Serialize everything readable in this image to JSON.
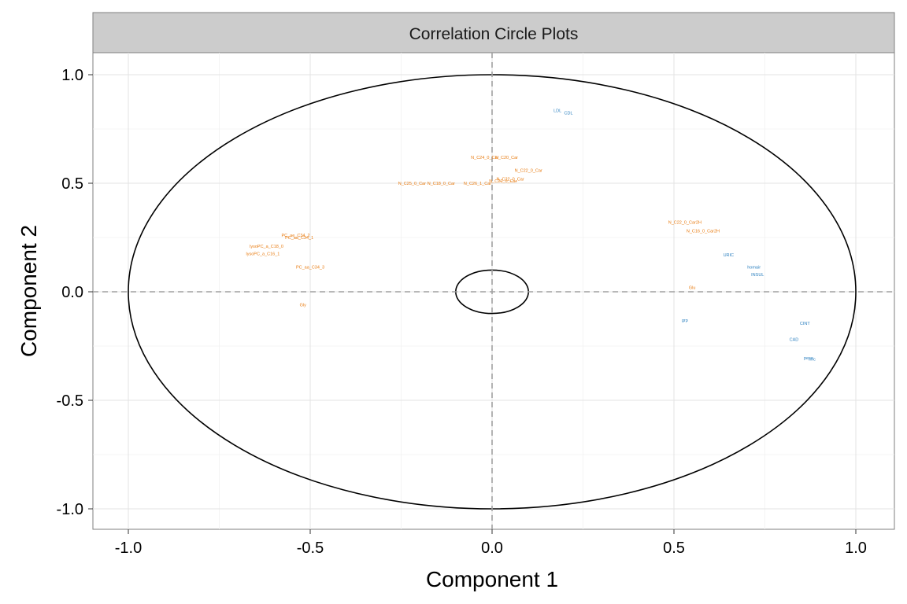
{
  "chart_data": {
    "type": "scatter",
    "title": "Correlation Circle Plots",
    "xlabel": "Component  1",
    "ylabel": "Component  2",
    "xlim": [
      -1.1,
      1.1
    ],
    "ylim": [
      -1.1,
      1.1
    ],
    "x_ticks": [
      {
        "value": -1.0,
        "label": "-1.0"
      },
      {
        "value": -0.5,
        "label": "-0.5"
      },
      {
        "value": 0.0,
        "label": "0.0"
      },
      {
        "value": 0.5,
        "label": "0.5"
      },
      {
        "value": 1.0,
        "label": "1.0"
      }
    ],
    "y_ticks": [
      {
        "value": 1.0,
        "label": "1.0"
      },
      {
        "value": 0.5,
        "label": "0.5"
      },
      {
        "value": 0.0,
        "label": "0.0"
      },
      {
        "value": -0.5,
        "label": "-0.5"
      },
      {
        "value": -1.0,
        "label": "-1.0"
      }
    ],
    "grid": true,
    "circles": [
      {
        "radius": 1.0
      },
      {
        "radius": 0.1
      }
    ],
    "reference_lines": {
      "x": 0,
      "y": 0,
      "style": "dashed"
    },
    "series": [
      {
        "color": "#E87B10",
        "points": [
          {
            "label": "N_C24_0_Car",
            "x": -0.02,
            "y": 0.62
          },
          {
            "label": "N_C20_Car",
            "x": 0.04,
            "y": 0.62
          },
          {
            "label": "N_C22_0_Car",
            "x": 0.1,
            "y": 0.56
          },
          {
            "label": "N_C22_0_Car",
            "x": 0.05,
            "y": 0.52
          },
          {
            "label": "N_C20_0_Car",
            "x": 0.03,
            "y": 0.51
          },
          {
            "label": "N_C25_0_Car",
            "x": -0.22,
            "y": 0.5
          },
          {
            "label": "N_C18_0_Car",
            "x": -0.14,
            "y": 0.5
          },
          {
            "label": "N_C26_1_Car",
            "x": -0.04,
            "y": 0.5
          },
          {
            "label": "N_C22_0_Car2H",
            "x": 0.53,
            "y": 0.32
          },
          {
            "label": "N_C16_0_Car2H",
            "x": 0.58,
            "y": 0.28
          },
          {
            "label": "PC_ae_C34_2",
            "x": -0.54,
            "y": 0.26
          },
          {
            "label": "PC_aa_C34_1",
            "x": -0.53,
            "y": 0.25
          },
          {
            "label": "lysoPC_a_C18_0",
            "x": -0.62,
            "y": 0.21
          },
          {
            "label": "lysoPC_a_C16_1",
            "x": -0.63,
            "y": 0.175
          },
          {
            "label": "PC_aa_C34_3",
            "x": -0.5,
            "y": 0.115
          },
          {
            "label": "Glu",
            "x": 0.55,
            "y": 0.02
          },
          {
            "label": "Gly",
            "x": -0.52,
            "y": -0.06
          }
        ]
      },
      {
        "color": "#2A7FBF",
        "points": [
          {
            "label": "LDL",
            "x": 0.18,
            "y": 0.835
          },
          {
            "label": "CDL",
            "x": 0.21,
            "y": 0.825
          },
          {
            "label": "URIC",
            "x": 0.65,
            "y": 0.17
          },
          {
            "label": "homair",
            "x": 0.72,
            "y": 0.115
          },
          {
            "label": "INSUL",
            "x": 0.73,
            "y": 0.08
          },
          {
            "label": "grp",
            "x": 0.53,
            "y": -0.13
          },
          {
            "label": "CINT",
            "x": 0.86,
            "y": -0.145
          },
          {
            "label": "CAD",
            "x": 0.83,
            "y": -0.22
          },
          {
            "label": "peso",
            "x": 0.87,
            "y": -0.305
          },
          {
            "label": "imc",
            "x": 0.88,
            "y": -0.31
          }
        ]
      }
    ]
  }
}
